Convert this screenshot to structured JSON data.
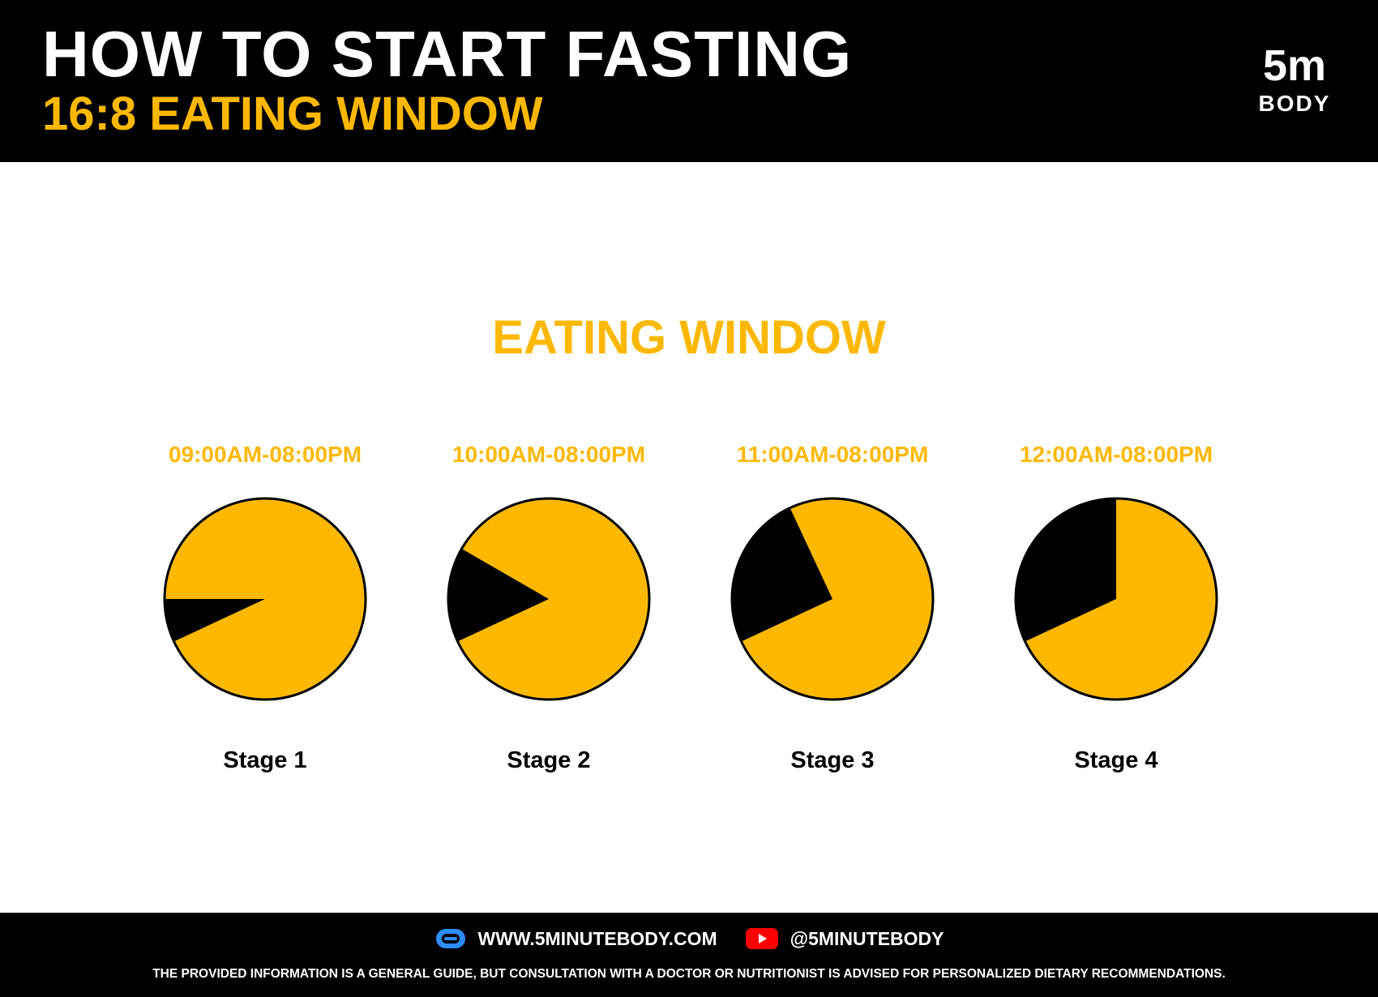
{
  "header": {
    "title": "HOW TO START FASTING",
    "subtitle": "16:8 EATING WINDOW",
    "logo_main": "5m",
    "logo_sub": "BODY"
  },
  "colors": {
    "accent": "#FFB800",
    "dark": "#000000",
    "background": "#FFFFFF"
  },
  "section_title": "EATING WINDOW",
  "chart_data": {
    "type": "pie",
    "title": "EATING WINDOW",
    "charts": [
      {
        "label": "Stage 1",
        "window": "09:00AM-08:00PM",
        "black_share": 0.05,
        "black_start_deg": 245,
        "black_end_deg": 270
      },
      {
        "label": "Stage 2",
        "window": "10:00AM-08:00PM",
        "black_share": 0.13,
        "black_start_deg": 245,
        "black_end_deg": 300
      },
      {
        "label": "Stage 3",
        "window": "11:00AM-08:00PM",
        "black_share": 0.24,
        "black_start_deg": 245,
        "black_end_deg": 335
      },
      {
        "label": "Stage 4",
        "window": "12:00AM-08:00PM",
        "black_share": 0.32,
        "black_start_deg": 245,
        "black_end_deg": 360
      }
    ]
  },
  "footer": {
    "website": "WWW.5MINUTEBODY.COM",
    "youtube": "@5MINUTEBODY",
    "disclaimer": "THE PROVIDED INFORMATION IS A GENERAL GUIDE, BUT CONSULTATION WITH A DOCTOR OR NUTRITIONIST IS ADVISED FOR PERSONALIZED DIETARY RECOMMENDATIONS.",
    "link_icon": "link-icon",
    "youtube_icon": "youtube-icon"
  }
}
